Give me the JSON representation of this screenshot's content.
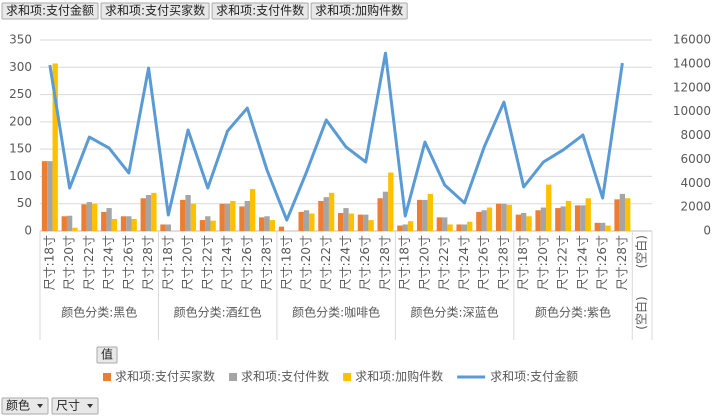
{
  "field_buttons": [
    "求和项:支付金额",
    "求和项:支付买家数",
    "求和项:支付件数",
    "求和项:加购件数"
  ],
  "values_button": "值",
  "axis_buttons": [
    "颜色",
    "尺寸"
  ],
  "chart_data": {
    "type": "combo",
    "groups": [
      {
        "name": "颜色分类:黑色",
        "categories": [
          "尺寸:18寸",
          "尺寸:20寸",
          "尺寸:22寸",
          "尺寸:24寸",
          "尺寸:26寸",
          "尺寸:28寸"
        ]
      },
      {
        "name": "颜色分类:酒红色",
        "categories": [
          "尺寸:18寸",
          "尺寸:20寸",
          "尺寸:22寸",
          "尺寸:24寸",
          "尺寸:26寸",
          "尺寸:28寸"
        ]
      },
      {
        "name": "颜色分类:咖啡色",
        "categories": [
          "尺寸:18寸",
          "尺寸:20寸",
          "尺寸:22寸",
          "尺寸:24寸",
          "尺寸:26寸",
          "尺寸:28寸"
        ]
      },
      {
        "name": "颜色分类:深蓝色",
        "categories": [
          "尺寸:18寸",
          "尺寸:20寸",
          "尺寸:22寸",
          "尺寸:24寸",
          "尺寸:26寸",
          "尺寸:28寸"
        ]
      },
      {
        "name": "颜色分类:紫色",
        "categories": [
          "尺寸:18寸",
          "尺寸:20寸",
          "尺寸:22寸",
          "尺寸:24寸",
          "尺寸:26寸",
          "尺寸:28寸"
        ]
      },
      {
        "name": "(空白)",
        "categories": [
          "(空白)"
        ]
      }
    ],
    "series": [
      {
        "name": "求和项:支付买家数",
        "color": "#ed7d31",
        "type": "bar",
        "values": [
          128,
          27,
          49,
          35,
          27,
          60,
          12,
          57,
          20,
          50,
          45,
          25,
          8,
          35,
          55,
          33,
          30,
          60,
          10,
          57,
          25,
          12,
          35,
          50,
          30,
          38,
          42,
          47,
          15,
          58,
          null
        ]
      },
      {
        "name": "求和项:支付件数",
        "color": "#a5a5a5",
        "type": "bar",
        "values": [
          128,
          28,
          53,
          42,
          27,
          66,
          12,
          66,
          27,
          50,
          55,
          27,
          0,
          38,
          62,
          42,
          30,
          72,
          12,
          57,
          25,
          12,
          38,
          50,
          33,
          43,
          45,
          47,
          15,
          68,
          null
        ]
      },
      {
        "name": "求和项:加购件数",
        "color": "#ffc000",
        "type": "bar",
        "values": [
          307,
          6,
          50,
          22,
          22,
          70,
          0,
          50,
          19,
          55,
          77,
          20,
          0,
          32,
          70,
          32,
          20,
          107,
          18,
          68,
          12,
          17,
          43,
          48,
          27,
          85,
          55,
          60,
          10,
          60,
          null
        ]
      },
      {
        "name": "求和项:支付金额",
        "color": "#5b9bd5",
        "type": "line",
        "axis": "y2",
        "values": [
          13900,
          3600,
          7870,
          6950,
          4860,
          13650,
          1340,
          8460,
          3600,
          8380,
          10300,
          5100,
          920,
          4940,
          9300,
          7040,
          5780,
          14900,
          1260,
          7450,
          3850,
          2350,
          7040,
          10800,
          3690,
          5780,
          6790,
          8040,
          2760,
          14070,
          null
        ]
      }
    ],
    "ylim": [
      0,
      350
    ],
    "yticks": [
      0,
      50,
      100,
      150,
      200,
      250,
      300,
      350
    ],
    "y2lim": [
      0,
      16000
    ],
    "y2ticks": [
      0,
      2000,
      4000,
      6000,
      8000,
      10000,
      12000,
      14000,
      16000
    ],
    "grid": true
  }
}
